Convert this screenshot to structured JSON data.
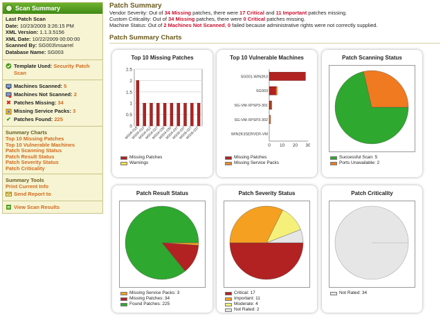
{
  "sidebar": {
    "title": "Scan Summary",
    "last_patch_scan_label": "Last Patch Scan",
    "info": [
      {
        "label": "Date:",
        "value": "10/23/2009 3:26:15 PM"
      },
      {
        "label": "XML Version:",
        "value": "1.1.3.5156"
      },
      {
        "label": "XML Date:",
        "value": "10/22/2009 00:00:00"
      },
      {
        "label": "Scanned By:",
        "value": "SG003\\msarrel"
      },
      {
        "label": "Database Name:",
        "value": "SG003"
      }
    ],
    "template_label": "Template Used:",
    "template_value": "Security Patch Scan",
    "stats": [
      {
        "label": "Machines Scanned:",
        "value": "5",
        "icon": "computer-icon"
      },
      {
        "label": "Machines Not Scanned:",
        "value": "2",
        "icon": "computer-error-icon"
      },
      {
        "label": "Patches Missing:",
        "value": "34",
        "icon": "red-x-icon"
      },
      {
        "label": "Missing Service Packs:",
        "value": "3",
        "icon": "service-pack-icon"
      },
      {
        "label": "Patches Found:",
        "value": "225",
        "icon": "checkmark-icon"
      }
    ],
    "charts_heading": "Summary Charts",
    "chart_links": [
      "Top 10 Missing Patches",
      "Top 10 Vulnerable Machines",
      "Patch Scanning Status",
      "Patch Result Status",
      "Patch Severity Status",
      "Patch Criticality"
    ],
    "tools_heading": "Summary Tools",
    "tool_links": [
      "Print Current Info",
      "Send Report to"
    ],
    "view_results": "View Scan Results"
  },
  "main": {
    "title": "Patch Summary",
    "vendor_line": {
      "p1": "Vendor Severity: Out of ",
      "n1": "34 Missing",
      "p2": " patches, there were ",
      "n2": "17 Critical",
      "p3": " and ",
      "n3": "11 Important",
      "p4": " patches missing."
    },
    "custom_line": {
      "p1": "Custom Criticality: Out of ",
      "n1": "34 Missing",
      "p2": " patches, there were ",
      "n2": "0 Critical",
      "p3": " patches missing."
    },
    "machine_line": {
      "p1": "Machine Status: Out of ",
      "n1": "2 Machines Not Scanned",
      "p2": ", ",
      "n2": "0",
      "p3": " failed because administrative rights were not correctly supplied."
    },
    "charts_heading": "Patch Summary Charts"
  },
  "chart_data": [
    {
      "type": "bar",
      "title": "Top 10 Missing Patches",
      "categories": [
        "MS08-018",
        "MS09-010",
        "MS04-012",
        "MS04-027",
        "MS04-039",
        "MS04-030",
        "MS04-037",
        "MS09-037",
        "MS06-027",
        "MS06-037"
      ],
      "series": [
        {
          "name": "Missing Patches",
          "values": [
            2,
            1,
            1,
            1,
            1,
            1,
            1,
            1,
            1,
            1
          ]
        },
        {
          "name": "Warnings",
          "values": [
            0,
            0,
            0,
            0,
            0,
            0,
            0,
            0,
            0,
            0
          ]
        }
      ],
      "yticks": [
        "0",
        "0.5",
        "1",
        "1.5",
        "2",
        "2.5"
      ],
      "ylim": [
        0,
        2.5
      ],
      "colors": [
        "#b22222",
        "#f5e04a"
      ]
    },
    {
      "type": "bar",
      "orientation": "horizontal",
      "title": "Top 10 Vulnerable Machines",
      "categories": [
        "SG001-WIN2K3",
        "SG003",
        "SG-VM-XPSP3-301",
        "SG-VM-XPSP3-302",
        "WIN2K3SERVER-VM"
      ],
      "series": [
        {
          "name": "Missing Patches",
          "values": [
            28,
            5,
            1,
            0,
            0
          ]
        },
        {
          "name": "Missing Service Packs",
          "values": [
            0,
            1,
            1,
            1,
            0
          ]
        }
      ],
      "xticks": [
        "0",
        "10",
        "20",
        "30"
      ],
      "xlim": [
        0,
        30
      ],
      "colors": [
        "#b22222",
        "#e88a2a"
      ]
    },
    {
      "type": "pie",
      "title": "Patch Scanning Status",
      "labels": [
        "Successful Scan: 5",
        "Ports Unavailable: 2"
      ],
      "values": [
        5,
        2
      ],
      "colors": [
        "#2ea82e",
        "#f07a20"
      ]
    },
    {
      "type": "pie",
      "title": "Patch Result Status",
      "labels": [
        "Missing Service Packs: 3",
        "Missing Patches: 34",
        "Found Patches: 225"
      ],
      "values": [
        3,
        34,
        225
      ],
      "colors": [
        "#f5a020",
        "#b22222",
        "#2ea82e"
      ]
    },
    {
      "type": "pie",
      "title": "Patch Severity Status",
      "labels": [
        "Critical: 17",
        "Important: 11",
        "Moderate: 4",
        "Not Rated: 2"
      ],
      "values": [
        17,
        11,
        4,
        2
      ],
      "colors": [
        "#b22222",
        "#f5a020",
        "#f5f07a",
        "#e6e6e6"
      ]
    },
    {
      "type": "pie",
      "title": "Patch Criticality",
      "labels": [
        "Not Rated: 34"
      ],
      "values": [
        34
      ],
      "colors": [
        "#e6e6e6"
      ]
    }
  ]
}
